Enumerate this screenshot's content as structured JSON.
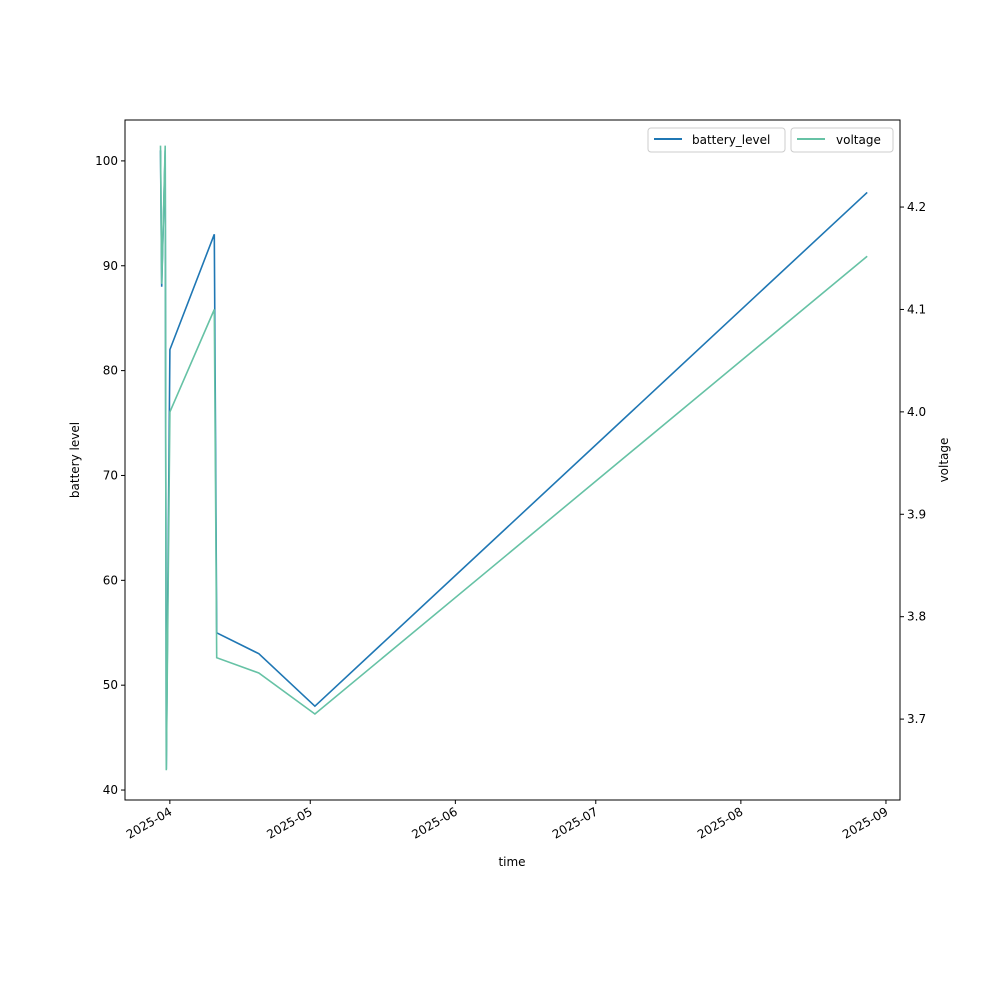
{
  "chart_data": {
    "type": "line",
    "xlabel": "time",
    "ylabel_left": "battery level",
    "ylabel_right": "voltage",
    "x": [
      "2025-03-30T00:00",
      "2025-03-30T06:00",
      "2025-03-31T00:00",
      "2025-03-31T06:00",
      "2025-04-01T00:00",
      "2025-04-10T12:00",
      "2025-04-11T00:00",
      "2025-04-20T00:00",
      "2025-05-02T00:00",
      "2025-08-28T00:00"
    ],
    "xlim": [
      "2025-03-22T10:00",
      "2025-09-04T00:00"
    ],
    "xticks": [
      "2025-04",
      "2025-05",
      "2025-06",
      "2025-07",
      "2025-08",
      "2025-09"
    ],
    "ylim_left": [
      39.05,
      103.9
    ],
    "yticks_left": [
      40,
      50,
      60,
      70,
      80,
      90,
      100
    ],
    "ylim_right": [
      3.621,
      4.285
    ],
    "yticks_right": [
      3.7,
      3.8,
      3.9,
      4.0,
      4.1,
      4.2
    ],
    "series": [
      {
        "name": "battery_level",
        "axis": "left",
        "color": "#1f77b4",
        "values": [
          101,
          88,
          101,
          42,
          82,
          93,
          55,
          53,
          48,
          97
        ]
      },
      {
        "name": "voltage",
        "axis": "right",
        "color": "#66c2a5",
        "values": [
          4.26,
          4.125,
          4.26,
          3.65,
          4.0,
          4.1,
          3.76,
          3.745,
          3.705,
          4.152
        ]
      }
    ],
    "grid": false,
    "legend": "top-right (two overlapping legends)"
  }
}
